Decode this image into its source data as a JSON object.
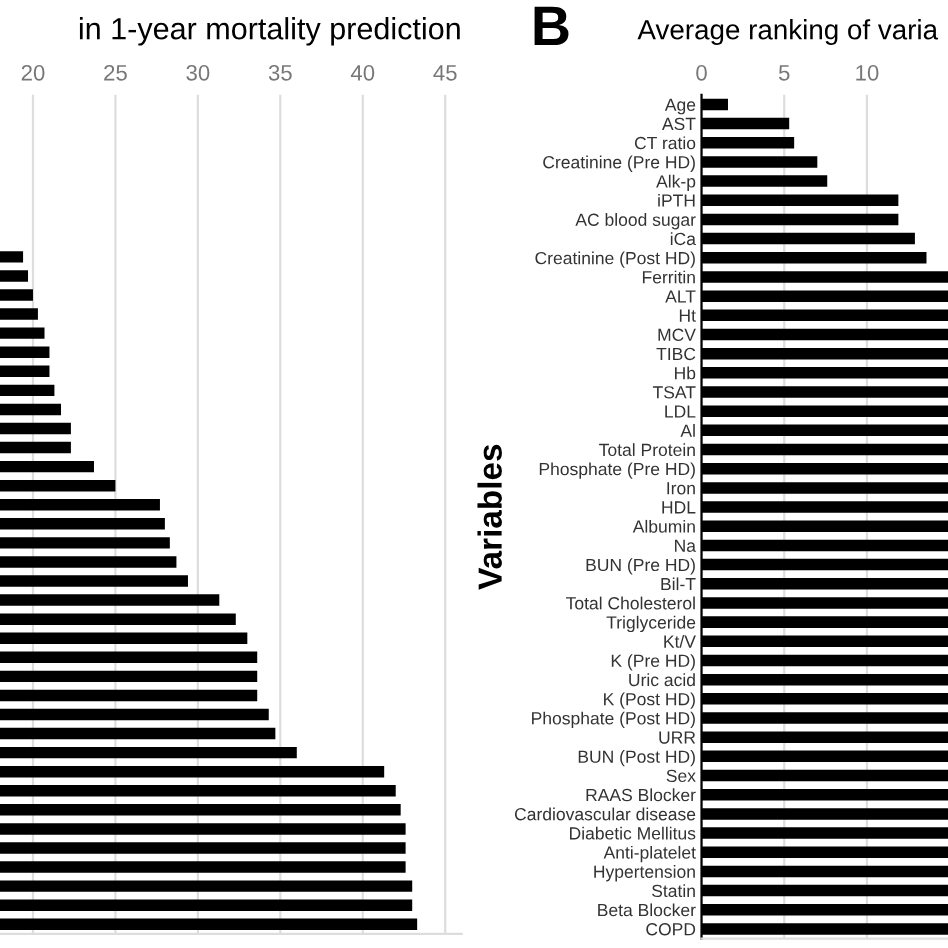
{
  "chart_data": [
    {
      "type": "bar",
      "orientation": "horizontal",
      "title": "in 1-year mortality prediction",
      "categories": [
        null,
        null,
        null,
        null,
        null,
        null,
        null,
        null,
        null,
        null,
        null,
        null,
        null,
        null,
        null,
        null,
        null,
        null,
        null,
        null,
        null,
        null,
        null,
        null,
        null,
        null,
        null,
        null,
        null,
        null,
        null,
        null,
        null,
        null,
        null,
        null,
        null,
        null,
        null,
        null,
        null,
        null,
        null,
        null
      ],
      "values": [
        null,
        null,
        null,
        null,
        null,
        null,
        null,
        null,
        19.4,
        19.7,
        20.0,
        20.3,
        20.7,
        21.0,
        21.0,
        21.3,
        21.7,
        22.3,
        22.3,
        23.7,
        25.0,
        27.7,
        28.0,
        28.3,
        28.7,
        29.4,
        31.3,
        32.3,
        33.0,
        33.6,
        33.6,
        33.6,
        34.3,
        34.7,
        36.0,
        41.3,
        42.0,
        42.3,
        42.6,
        42.6,
        42.6,
        43.0,
        43.0,
        43.3
      ],
      "color": "#000000",
      "xlim": [
        18,
        46
      ],
      "xticks": [
        20,
        25,
        30,
        35,
        40,
        45
      ],
      "grid": "x"
    },
    {
      "type": "bar",
      "orientation": "horizontal",
      "title": "Average ranking of varia",
      "ylabel": "Variables",
      "annotations": [
        "B"
      ],
      "categories": [
        "Age",
        "AST",
        "CT ratio",
        "Creatinine (Pre HD)",
        "Alk-p",
        "iPTH",
        "AC blood sugar",
        "iCa",
        "Creatinine (Post HD)",
        "Ferritin",
        "ALT",
        "Ht",
        "MCV",
        "TIBC",
        "Hb",
        "TSAT",
        "LDL",
        "Al",
        "Total Protein",
        "Phosphate (Pre HD)",
        "Iron",
        "HDL",
        "Albumin",
        "Na",
        "BUN (Pre HD)",
        "Bil-T",
        "Total Cholesterol",
        "Triglyceride",
        "Kt/V",
        "K (Pre HD)",
        "Uric acid",
        "K (Post HD)",
        "Phosphate (Post HD)",
        "URR",
        "BUN (Post HD)",
        "Sex",
        "RAAS Blocker",
        "Cardiovascular disease",
        "Diabetic Mellitus",
        "Anti-platelet",
        "Hypertension",
        "Statin",
        "Beta Blocker",
        "COPD"
      ],
      "values": [
        1.6,
        5.3,
        5.6,
        7.0,
        7.6,
        11.9,
        11.9,
        12.9,
        13.6,
        14.9,
        14.9,
        14.9,
        14.9,
        14.9,
        14.9,
        14.9,
        14.9,
        14.9,
        14.9,
        14.9,
        14.9,
        14.9,
        14.9,
        14.9,
        14.9,
        14.9,
        14.9,
        14.9,
        14.9,
        14.9,
        14.9,
        14.9,
        14.9,
        14.9,
        14.9,
        14.9,
        14.9,
        14.9,
        14.9,
        14.9,
        14.9,
        14.9,
        14.9,
        14.9
      ],
      "color": "#000000",
      "xlim": [
        0,
        14.9
      ],
      "xticks": [
        0,
        5,
        10
      ],
      "grid": "x"
    }
  ]
}
